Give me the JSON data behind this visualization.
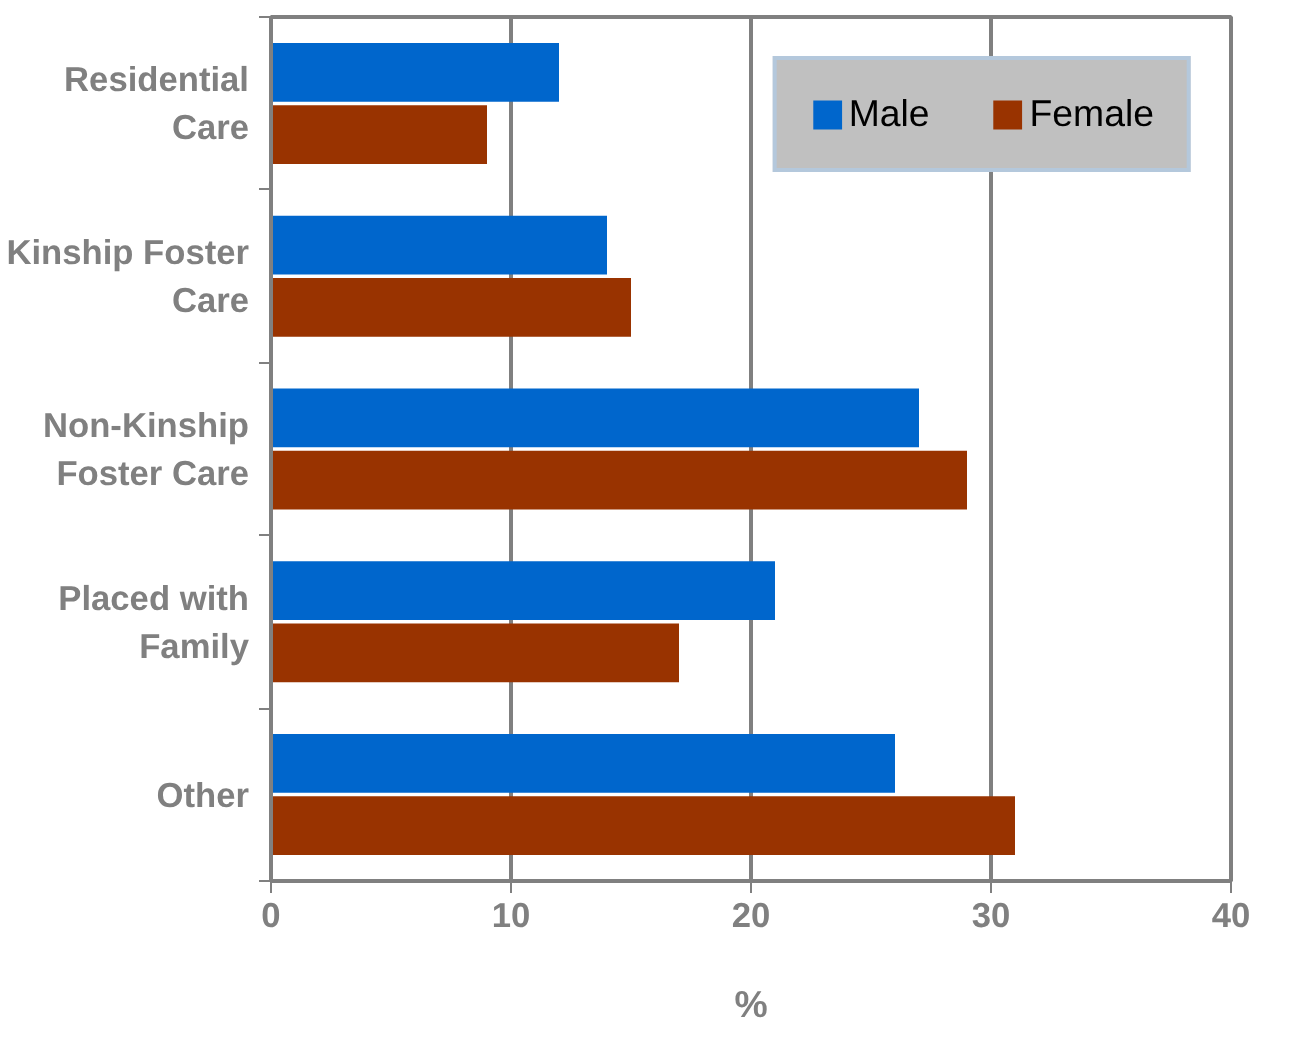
{
  "chart_data": {
    "type": "bar",
    "orientation": "horizontal",
    "xlabel": "%",
    "categories": [
      "Residential\nCare",
      "Kinship Foster\nCare",
      "Non-Kinship\nFoster Care",
      "Placed with\nFamily",
      "Other"
    ],
    "series": [
      {
        "name": "Male",
        "color": "#0066cc",
        "values": [
          12,
          14,
          27,
          21,
          26
        ]
      },
      {
        "name": "Female",
        "color": "#993300",
        "values": [
          9,
          15,
          29,
          17,
          31
        ]
      }
    ],
    "xlim": [
      0,
      40
    ],
    "xticks": [
      0,
      10,
      20,
      30,
      40
    ],
    "grid": "x",
    "legend": "top right"
  }
}
